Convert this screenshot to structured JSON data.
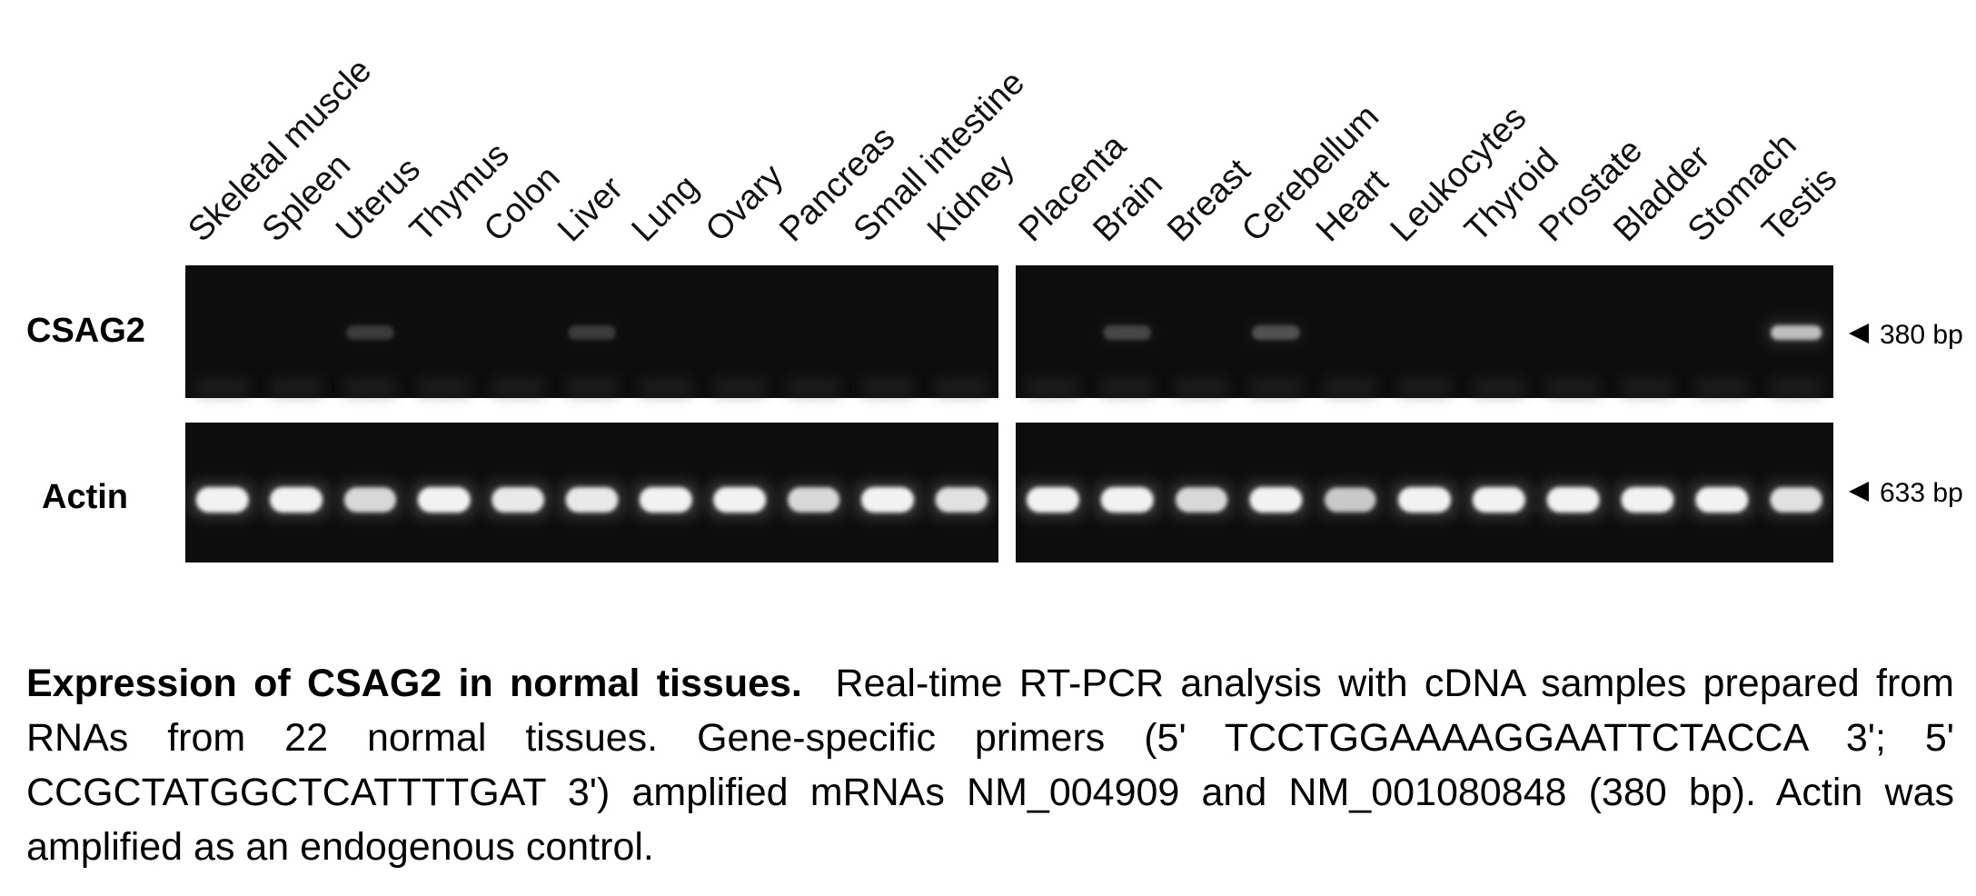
{
  "lanes_left": [
    "Skeletal muscle",
    "Spleen",
    "Uterus",
    "Thymus",
    "Colon",
    "Liver",
    "Lung",
    "Ovary",
    "Pancreas",
    "Small intestine",
    "Kidney"
  ],
  "lanes_right": [
    "Placenta",
    "Brain",
    "Breast",
    "Cerebellum",
    "Heart",
    "Leukocytes",
    "Thyroid",
    "Prostate",
    "Bladder",
    "Stomach",
    "Testis"
  ],
  "rows": [
    {
      "label": "CSAG2",
      "size": "380 bp",
      "band_level_left": [
        0,
        0,
        0.05,
        0,
        0,
        0.05,
        0,
        0,
        0,
        0,
        0
      ],
      "band_level_right": [
        0,
        0.1,
        0,
        0.15,
        0,
        0,
        0,
        0,
        0,
        0,
        0.7
      ]
    },
    {
      "label": "Actin",
      "size": "633 bp",
      "band_level_left": [
        1,
        1,
        0.85,
        1,
        0.95,
        0.95,
        1,
        1,
        0.85,
        1,
        0.9
      ],
      "band_level_right": [
        1,
        1,
        0.85,
        1,
        0.75,
        1,
        1,
        1,
        1,
        1,
        0.9
      ]
    }
  ],
  "caption": {
    "title": "Expression of CSAG2 in normal tissues.",
    "body": "Real-time RT-PCR  analysis with cDNA samples prepared from RNAs from 22 normal tissues. Gene-specific primers (5' TCCTGGAAAAGGAATTCTACCA 3'; 5' CCGCTATGGCTCATTTTGAT 3') amplified mRNAs NM_004909 and NM_001080848 (380 bp). Actin was amplified as an endogenous control."
  },
  "colors": {
    "gel": "#0d0d0d",
    "band": "#f2f2f2",
    "text": "#000000"
  }
}
